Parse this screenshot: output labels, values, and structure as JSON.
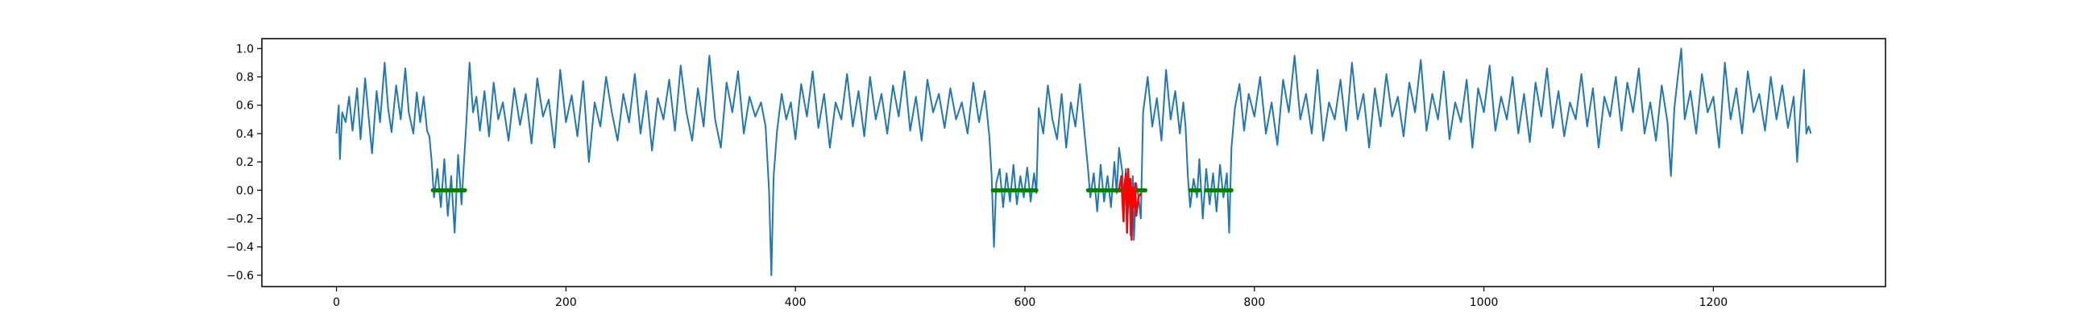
{
  "chart_data": {
    "type": "line",
    "title": "",
    "xlabel": "",
    "ylabel": "",
    "xlim": [
      -65,
      1350
    ],
    "ylim": [
      -0.68,
      1.07
    ],
    "x_ticks": [
      0,
      200,
      400,
      600,
      800,
      1000,
      1200
    ],
    "x_tick_labels": [
      "0",
      "200",
      "400",
      "600",
      "800",
      "1000",
      "1200"
    ],
    "y_ticks": [
      -0.6,
      -0.4,
      -0.2,
      0.0,
      0.2,
      0.4,
      0.6,
      0.8,
      1.0
    ],
    "y_tick_labels": [
      "−0.6",
      "−0.4",
      "−0.2",
      "0.0",
      "0.2",
      "0.4",
      "0.6",
      "0.8",
      "1.0"
    ],
    "grid": false,
    "legend": "none",
    "series_colors": {
      "signal": "#1f77b4",
      "segments": "#008000",
      "highlight": "#ff0000"
    },
    "x_range": [
      0,
      1285
    ],
    "signal_points": [
      [
        0,
        0.4
      ],
      [
        2,
        0.6
      ],
      [
        3,
        0.22
      ],
      [
        5,
        0.55
      ],
      [
        8,
        0.48
      ],
      [
        11,
        0.66
      ],
      [
        14,
        0.42
      ],
      [
        18,
        0.72
      ],
      [
        21,
        0.36
      ],
      [
        25,
        0.79
      ],
      [
        28,
        0.52
      ],
      [
        31,
        0.26
      ],
      [
        35,
        0.7
      ],
      [
        38,
        0.48
      ],
      [
        42,
        0.9
      ],
      [
        45,
        0.58
      ],
      [
        48,
        0.41
      ],
      [
        52,
        0.74
      ],
      [
        56,
        0.5
      ],
      [
        60,
        0.86
      ],
      [
        63,
        0.55
      ],
      [
        67,
        0.4
      ],
      [
        70,
        0.69
      ],
      [
        73,
        0.48
      ],
      [
        76,
        0.66
      ],
      [
        79,
        0.42
      ],
      [
        81,
        0.38
      ],
      [
        83,
        0.2
      ],
      [
        85,
        -0.05
      ],
      [
        88,
        0.15
      ],
      [
        91,
        -0.12
      ],
      [
        94,
        0.22
      ],
      [
        97,
        -0.18
      ],
      [
        100,
        0.1
      ],
      [
        103,
        -0.3
      ],
      [
        106,
        0.25
      ],
      [
        109,
        -0.1
      ],
      [
        111,
        0.18
      ],
      [
        113,
        0.45
      ],
      [
        116,
        0.9
      ],
      [
        119,
        0.55
      ],
      [
        122,
        0.66
      ],
      [
        125,
        0.42
      ],
      [
        129,
        0.7
      ],
      [
        133,
        0.38
      ],
      [
        137,
        0.76
      ],
      [
        141,
        0.5
      ],
      [
        145,
        0.62
      ],
      [
        150,
        0.35
      ],
      [
        155,
        0.72
      ],
      [
        160,
        0.46
      ],
      [
        165,
        0.68
      ],
      [
        170,
        0.33
      ],
      [
        175,
        0.79
      ],
      [
        180,
        0.52
      ],
      [
        185,
        0.64
      ],
      [
        190,
        0.3
      ],
      [
        195,
        0.85
      ],
      [
        200,
        0.48
      ],
      [
        205,
        0.67
      ],
      [
        210,
        0.38
      ],
      [
        215,
        0.77
      ],
      [
        220,
        0.2
      ],
      [
        225,
        0.62
      ],
      [
        230,
        0.45
      ],
      [
        235,
        0.8
      ],
      [
        240,
        0.55
      ],
      [
        245,
        0.35
      ],
      [
        250,
        0.68
      ],
      [
        255,
        0.48
      ],
      [
        260,
        0.82
      ],
      [
        265,
        0.4
      ],
      [
        270,
        0.7
      ],
      [
        275,
        0.28
      ],
      [
        280,
        0.65
      ],
      [
        285,
        0.5
      ],
      [
        290,
        0.78
      ],
      [
        295,
        0.42
      ],
      [
        300,
        0.88
      ],
      [
        305,
        0.55
      ],
      [
        310,
        0.35
      ],
      [
        315,
        0.72
      ],
      [
        320,
        0.45
      ],
      [
        325,
        0.95
      ],
      [
        330,
        0.5
      ],
      [
        335,
        0.3
      ],
      [
        340,
        0.76
      ],
      [
        345,
        0.55
      ],
      [
        350,
        0.84
      ],
      [
        355,
        0.4
      ],
      [
        360,
        0.66
      ],
      [
        365,
        0.52
      ],
      [
        370,
        0.62
      ],
      [
        374,
        0.45
      ],
      [
        377,
        0.0
      ],
      [
        379,
        -0.6
      ],
      [
        381,
        0.1
      ],
      [
        384,
        0.42
      ],
      [
        388,
        0.68
      ],
      [
        392,
        0.5
      ],
      [
        396,
        0.62
      ],
      [
        400,
        0.36
      ],
      [
        405,
        0.75
      ],
      [
        410,
        0.52
      ],
      [
        415,
        0.84
      ],
      [
        420,
        0.44
      ],
      [
        425,
        0.68
      ],
      [
        430,
        0.3
      ],
      [
        435,
        0.62
      ],
      [
        440,
        0.5
      ],
      [
        445,
        0.82
      ],
      [
        450,
        0.45
      ],
      [
        455,
        0.7
      ],
      [
        460,
        0.38
      ],
      [
        465,
        0.8
      ],
      [
        470,
        0.5
      ],
      [
        475,
        0.68
      ],
      [
        480,
        0.4
      ],
      [
        485,
        0.74
      ],
      [
        490,
        0.52
      ],
      [
        495,
        0.84
      ],
      [
        500,
        0.42
      ],
      [
        505,
        0.66
      ],
      [
        510,
        0.35
      ],
      [
        515,
        0.78
      ],
      [
        520,
        0.55
      ],
      [
        525,
        0.68
      ],
      [
        530,
        0.44
      ],
      [
        535,
        0.72
      ],
      [
        540,
        0.5
      ],
      [
        545,
        0.62
      ],
      [
        550,
        0.4
      ],
      [
        555,
        0.76
      ],
      [
        560,
        0.48
      ],
      [
        565,
        0.7
      ],
      [
        569,
        0.38
      ],
      [
        571,
        0.1
      ],
      [
        573,
        -0.4
      ],
      [
        575,
        0.05
      ],
      [
        578,
        0.15
      ],
      [
        581,
        -0.12
      ],
      [
        584,
        0.12
      ],
      [
        587,
        -0.08
      ],
      [
        590,
        0.18
      ],
      [
        593,
        -0.1
      ],
      [
        596,
        0.1
      ],
      [
        599,
        -0.05
      ],
      [
        602,
        0.16
      ],
      [
        605,
        -0.08
      ],
      [
        608,
        0.12
      ],
      [
        610,
        -0.02
      ],
      [
        612,
        0.58
      ],
      [
        616,
        0.4
      ],
      [
        620,
        0.74
      ],
      [
        624,
        0.5
      ],
      [
        628,
        0.36
      ],
      [
        632,
        0.68
      ],
      [
        636,
        0.3
      ],
      [
        640,
        0.62
      ],
      [
        644,
        0.45
      ],
      [
        648,
        0.75
      ],
      [
        652,
        0.4
      ],
      [
        655,
        0.15
      ],
      [
        657,
        -0.05
      ],
      [
        660,
        0.12
      ],
      [
        663,
        -0.15
      ],
      [
        666,
        0.18
      ],
      [
        669,
        -0.08
      ],
      [
        672,
        0.1
      ],
      [
        675,
        -0.12
      ],
      [
        678,
        0.2
      ],
      [
        680,
        -0.02
      ],
      [
        682,
        0.3
      ],
      [
        685,
        0.12
      ],
      [
        686,
        -0.15
      ],
      [
        688,
        0.15
      ],
      [
        689,
        -0.28
      ],
      [
        691,
        0.05
      ],
      [
        692,
        -0.32
      ],
      [
        694,
        0.1
      ],
      [
        695,
        -0.35
      ],
      [
        697,
        0.05
      ],
      [
        699,
        -0.05
      ],
      [
        701,
        -0.2
      ],
      [
        703,
        0.55
      ],
      [
        707,
        0.8
      ],
      [
        711,
        0.45
      ],
      [
        715,
        0.65
      ],
      [
        719,
        0.35
      ],
      [
        723,
        0.85
      ],
      [
        727,
        0.5
      ],
      [
        731,
        0.7
      ],
      [
        735,
        0.4
      ],
      [
        738,
        0.62
      ],
      [
        740,
        0.45
      ],
      [
        742,
        0.1
      ],
      [
        744,
        -0.12
      ],
      [
        747,
        0.08
      ],
      [
        750,
        -0.05
      ],
      [
        752,
        0.22
      ],
      [
        755,
        -0.2
      ],
      [
        758,
        0.15
      ],
      [
        761,
        -0.1
      ],
      [
        764,
        0.12
      ],
      [
        767,
        -0.15
      ],
      [
        770,
        0.18
      ],
      [
        773,
        -0.05
      ],
      [
        776,
        0.12
      ],
      [
        778,
        -0.3
      ],
      [
        780,
        0.3
      ],
      [
        783,
        0.58
      ],
      [
        787,
        0.75
      ],
      [
        791,
        0.42
      ],
      [
        795,
        0.68
      ],
      [
        800,
        0.52
      ],
      [
        805,
        0.8
      ],
      [
        810,
        0.4
      ],
      [
        815,
        0.62
      ],
      [
        820,
        0.32
      ],
      [
        825,
        0.78
      ],
      [
        830,
        0.55
      ],
      [
        835,
        0.95
      ],
      [
        840,
        0.5
      ],
      [
        845,
        0.68
      ],
      [
        850,
        0.4
      ],
      [
        855,
        0.85
      ],
      [
        860,
        0.35
      ],
      [
        865,
        0.62
      ],
      [
        870,
        0.5
      ],
      [
        875,
        0.78
      ],
      [
        880,
        0.42
      ],
      [
        885,
        0.9
      ],
      [
        890,
        0.5
      ],
      [
        895,
        0.68
      ],
      [
        900,
        0.3
      ],
      [
        905,
        0.72
      ],
      [
        910,
        0.45
      ],
      [
        915,
        0.82
      ],
      [
        920,
        0.52
      ],
      [
        925,
        0.66
      ],
      [
        930,
        0.38
      ],
      [
        935,
        0.76
      ],
      [
        940,
        0.55
      ],
      [
        945,
        0.92
      ],
      [
        950,
        0.42
      ],
      [
        955,
        0.68
      ],
      [
        960,
        0.5
      ],
      [
        965,
        0.84
      ],
      [
        970,
        0.36
      ],
      [
        975,
        0.62
      ],
      [
        980,
        0.48
      ],
      [
        985,
        0.78
      ],
      [
        990,
        0.3
      ],
      [
        995,
        0.72
      ],
      [
        1000,
        0.55
      ],
      [
        1005,
        0.88
      ],
      [
        1010,
        0.42
      ],
      [
        1015,
        0.66
      ],
      [
        1020,
        0.5
      ],
      [
        1025,
        0.8
      ],
      [
        1030,
        0.4
      ],
      [
        1035,
        0.68
      ],
      [
        1040,
        0.34
      ],
      [
        1045,
        0.76
      ],
      [
        1050,
        0.52
      ],
      [
        1055,
        0.86
      ],
      [
        1060,
        0.44
      ],
      [
        1065,
        0.7
      ],
      [
        1070,
        0.38
      ],
      [
        1075,
        0.62
      ],
      [
        1080,
        0.5
      ],
      [
        1085,
        0.82
      ],
      [
        1090,
        0.45
      ],
      [
        1095,
        0.72
      ],
      [
        1100,
        0.3
      ],
      [
        1105,
        0.66
      ],
      [
        1110,
        0.52
      ],
      [
        1115,
        0.8
      ],
      [
        1120,
        0.42
      ],
      [
        1125,
        0.76
      ],
      [
        1130,
        0.55
      ],
      [
        1135,
        0.86
      ],
      [
        1140,
        0.4
      ],
      [
        1145,
        0.62
      ],
      [
        1150,
        0.35
      ],
      [
        1155,
        0.74
      ],
      [
        1160,
        0.48
      ],
      [
        1163,
        0.1
      ],
      [
        1166,
        0.58
      ],
      [
        1169,
        0.8
      ],
      [
        1172,
        1.0
      ],
      [
        1175,
        0.5
      ],
      [
        1180,
        0.7
      ],
      [
        1185,
        0.4
      ],
      [
        1190,
        0.82
      ],
      [
        1195,
        0.55
      ],
      [
        1200,
        0.66
      ],
      [
        1205,
        0.3
      ],
      [
        1210,
        0.9
      ],
      [
        1215,
        0.5
      ],
      [
        1220,
        0.72
      ],
      [
        1225,
        0.4
      ],
      [
        1230,
        0.84
      ],
      [
        1235,
        0.55
      ],
      [
        1240,
        0.68
      ],
      [
        1245,
        0.42
      ],
      [
        1250,
        0.8
      ],
      [
        1255,
        0.5
      ],
      [
        1260,
        0.74
      ],
      [
        1265,
        0.44
      ],
      [
        1270,
        0.66
      ],
      [
        1273,
        0.2
      ],
      [
        1276,
        0.58
      ],
      [
        1279,
        0.85
      ],
      [
        1281,
        0.4
      ],
      [
        1283,
        0.45
      ],
      [
        1285,
        0.4
      ]
    ],
    "segments": [
      {
        "x_start": 84,
        "x_end": 112,
        "y": 0.0
      },
      {
        "x_start": 572,
        "x_end": 610,
        "y": 0.0
      },
      {
        "x_start": 655,
        "x_end": 705,
        "y": 0.0
      },
      {
        "x_start": 744,
        "x_end": 752,
        "y": 0.0
      },
      {
        "x_start": 758,
        "x_end": 780,
        "y": 0.0
      }
    ],
    "highlight_points": [
      [
        682,
        0.0
      ],
      [
        684,
        0.1
      ],
      [
        685,
        -0.08
      ],
      [
        686,
        -0.22
      ],
      [
        687,
        0.05
      ],
      [
        688,
        0.12
      ],
      [
        689,
        -0.3
      ],
      [
        690,
        0.15
      ],
      [
        691,
        -0.1
      ],
      [
        692,
        0.08
      ],
      [
        693,
        -0.35
      ],
      [
        694,
        0.02
      ],
      [
        695,
        -0.12
      ],
      [
        696,
        0.05
      ],
      [
        697,
        -0.18
      ],
      [
        699,
        -0.05
      ],
      [
        701,
        -0.02
      ]
    ]
  }
}
